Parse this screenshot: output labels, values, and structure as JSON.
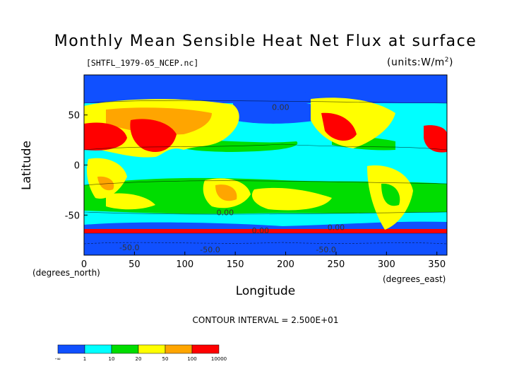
{
  "chart_data": {
    "type": "heatmap",
    "title": "Monthly Mean Sensible Heat Net Flux at surface",
    "subtitle": "[SHTFL_1979-05_NCEP.nc]",
    "units": "(units:W/m^2)",
    "xlabel": "Longitude",
    "ylabel": "Latitude",
    "x_unit_label": "(degrees_east)",
    "y_unit_label": "(degrees_north)",
    "xlim": [
      0,
      360
    ],
    "ylim": [
      -90,
      90
    ],
    "x_ticks": [
      0,
      50,
      100,
      150,
      200,
      250,
      300,
      350
    ],
    "y_ticks": [
      -50,
      0,
      50
    ],
    "contour_interval_text": "CONTOUR INTERVAL = 2.500E+01",
    "contour_labels": [
      {
        "lon": 195,
        "lat": 55,
        "text": "0.00"
      },
      {
        "lon": 140,
        "lat": -50,
        "text": "0.00"
      },
      {
        "lon": 175,
        "lat": -68,
        "text": "0.00"
      },
      {
        "lon": 250,
        "lat": -65,
        "text": "0.00"
      },
      {
        "lon": 45,
        "lat": -85,
        "text": "-50.0"
      },
      {
        "lon": 125,
        "lat": -87,
        "text": "-50.0"
      },
      {
        "lon": 240,
        "lat": -87,
        "text": "-50.0"
      }
    ],
    "colorbar": {
      "colors": [
        "#1050ff",
        "#00ffff",
        "#00dd00",
        "#ffff00",
        "#ffa500",
        "#ff0000"
      ],
      "tick_labels": [
        "-∞",
        "1",
        "10",
        "20",
        "50",
        "100",
        "10000"
      ]
    },
    "regions": [
      {
        "name": "arctic_ocean",
        "value_class": 0
      },
      {
        "name": "tropical_ocean",
        "value_class": 1
      },
      {
        "name": "subtropical_ocean",
        "value_class": 2
      },
      {
        "name": "southern_ocean_belt",
        "value_class": 0
      },
      {
        "name": "antarctica",
        "value_class": 0
      },
      {
        "name": "sahara_arabia",
        "value_class": 5
      },
      {
        "name": "central_asia",
        "value_class": 4
      },
      {
        "name": "southwest_north_america",
        "value_class": 5
      },
      {
        "name": "australia",
        "value_class": 3
      },
      {
        "name": "southern_africa",
        "value_class": 3
      },
      {
        "name": "south_america",
        "value_class": 3
      }
    ]
  }
}
